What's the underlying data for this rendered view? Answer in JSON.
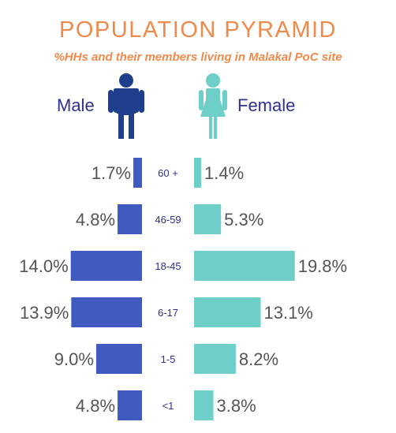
{
  "header": {
    "title": "POPULATION PYRAMID",
    "subtitle": "%HHs and their members living in Malakal PoC site"
  },
  "legend": {
    "male_label": "Male",
    "female_label": "Female",
    "male_icon": "male-person-icon",
    "female_icon": "female-person-icon"
  },
  "colors": {
    "male": "#3f5bbf",
    "female": "#6dcfc8",
    "title": "#f08a4b",
    "male_icon": "#1f3f8c",
    "female_icon": "#6dcfc8",
    "age_text": "#2e3191",
    "value_text": "#555555"
  },
  "chart_data": {
    "type": "bar",
    "title": "POPULATION PYRAMID",
    "subtitle": "%HHs and their members living in Malakal PoC site",
    "categories": [
      "60 +",
      "46-59",
      "18-45",
      "6-17",
      "1-5",
      "<1"
    ],
    "series": [
      {
        "name": "Male",
        "values": [
          1.7,
          4.8,
          14.0,
          13.9,
          9.0,
          4.8
        ],
        "labels": [
          "1.7%",
          "4.8%",
          "14.0%",
          "13.9%",
          "9.0%",
          "4.8%"
        ]
      },
      {
        "name": "Female",
        "values": [
          1.4,
          5.3,
          19.8,
          13.1,
          8.2,
          3.8
        ],
        "labels": [
          "1.4%",
          "5.3%",
          "19.8%",
          "13.1%",
          "8.2%",
          "3.8%"
        ]
      }
    ],
    "orientation": "horizontal-pyramid"
  }
}
